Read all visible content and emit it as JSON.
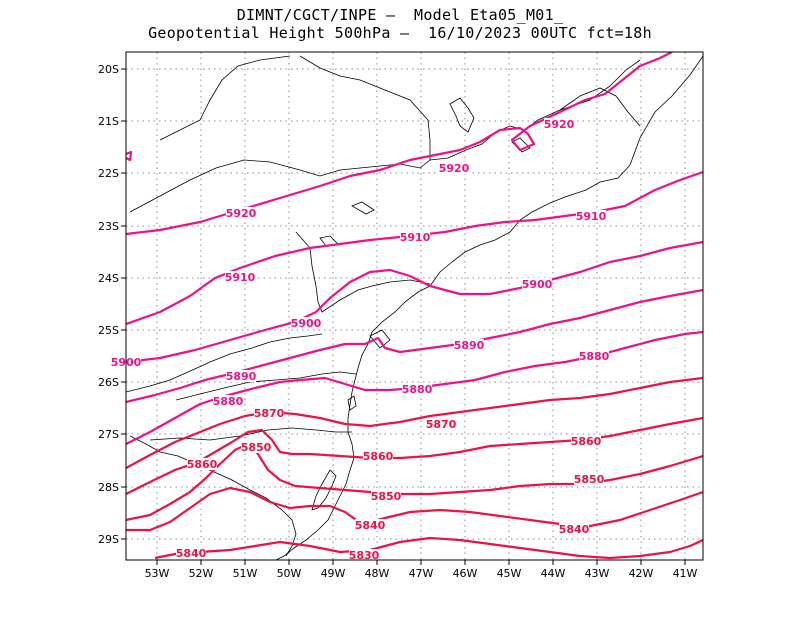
{
  "title": {
    "line1": "DIMNT/CGCT/INPE –  Model Eta05_M01_",
    "line2": "Geopotential Height 500hPa –  16/10/2023 00UTC fct=18h"
  },
  "colors": {
    "contour_pink": "#ee1188",
    "contour_red": "#ee1144",
    "coast": "#000000",
    "grid": "#8a8a8a"
  },
  "axes": {
    "lon_labels": [
      "53W",
      "52W",
      "51W",
      "50W",
      "49W",
      "48W",
      "47W",
      "46W",
      "45W",
      "44W",
      "43W",
      "42W",
      "41W"
    ],
    "lat_labels": [
      "20S",
      "21S",
      "22S",
      "23S",
      "24S",
      "25S",
      "26S",
      "27S",
      "28S",
      "29S"
    ]
  },
  "contours": [
    {
      "value": 5920,
      "labels": [
        "5920",
        "5920",
        "5920"
      ]
    },
    {
      "value": 5910,
      "labels": [
        "5910",
        "5910",
        "5910"
      ]
    },
    {
      "value": 5900,
      "labels": [
        "5900",
        "5900",
        "5900"
      ]
    },
    {
      "value": 5890,
      "labels": [
        "5890",
        "5890"
      ]
    },
    {
      "value": 5880,
      "labels": [
        "5880",
        "5880",
        "5880"
      ]
    },
    {
      "value": 5870,
      "labels": [
        "5870",
        "5870"
      ]
    },
    {
      "value": 5860,
      "labels": [
        "5860",
        "5860",
        "5860"
      ]
    },
    {
      "value": 5850,
      "labels": [
        "5850",
        "5850",
        "5850"
      ]
    },
    {
      "value": 5840,
      "labels": [
        "5840",
        "5840",
        "5840"
      ]
    },
    {
      "value": 5830,
      "labels": [
        "5830"
      ]
    }
  ]
}
